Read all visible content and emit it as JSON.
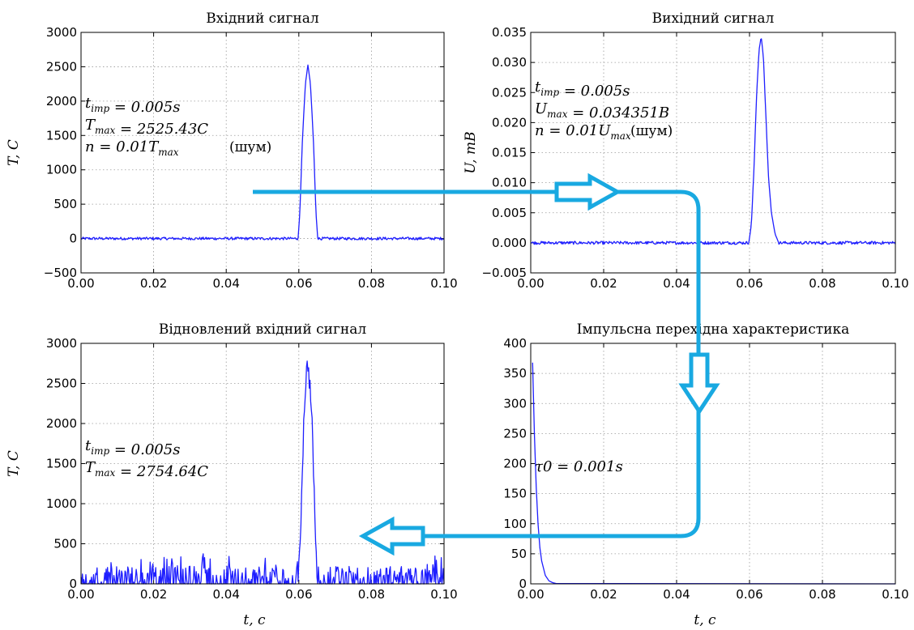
{
  "colors": {
    "series": "#1f1fff",
    "arrow": "#19a9e1",
    "grid": "#9a9a9a"
  },
  "chart_data": [
    {
      "type": "line",
      "title": "Вхідний сигнал",
      "xlabel": "",
      "ylabel": "T, C",
      "xlim": [
        0,
        0.1
      ],
      "ylim": [
        -500,
        3000
      ],
      "xticks": [
        "0.00",
        "0.02",
        "0.04",
        "0.06",
        "0.08",
        "0.10"
      ],
      "yticks": [
        "−500",
        "0",
        "500",
        "1000",
        "1500",
        "2000",
        "2500",
        "3000"
      ],
      "grid": true,
      "annotations": [
        "t_imp = 0.005s",
        "T_max = 2525.43C",
        "n = 0.01T_max",
        "(шум)"
      ],
      "series": [
        {
          "noise_amplitude": 40,
          "x": [
            0,
            0.0598,
            0.0603,
            0.061,
            0.0618,
            0.0625,
            0.0632,
            0.064,
            0.0647,
            0.0652
          ],
          "y": [
            0,
            0,
            400,
            1450,
            2250,
            2525,
            2250,
            1450,
            400,
            0
          ]
        }
      ]
    },
    {
      "type": "line",
      "title": "Вихідний сигнал",
      "xlabel": "",
      "ylabel": "U, mB",
      "xlim": [
        0,
        0.1
      ],
      "ylim": [
        -0.005,
        0.035
      ],
      "xticks": [
        "0.00",
        "0.02",
        "0.04",
        "0.06",
        "0.08",
        "0.10"
      ],
      "yticks": [
        "−0.005",
        "0.000",
        "0.005",
        "0.010",
        "0.015",
        "0.020",
        "0.025",
        "0.030",
        "0.035"
      ],
      "grid": true,
      "annotations": [
        "t_imp = 0.005s",
        "U_max = 0.034351B",
        "n = 0.01U_max",
        "(шум)"
      ],
      "series": [
        {
          "noise_amplitude": 0.0005,
          "x": [
            0,
            0.0598,
            0.0605,
            0.0612,
            0.0619,
            0.0626,
            0.0632,
            0.0638,
            0.0645,
            0.0652,
            0.066,
            0.067,
            0.068
          ],
          "y": [
            0,
            0,
            0.003,
            0.012,
            0.024,
            0.032,
            0.0343,
            0.031,
            0.021,
            0.011,
            0.005,
            0.0015,
            0
          ]
        }
      ]
    },
    {
      "type": "line",
      "title": "Відновлений вхідний сигнал",
      "xlabel": "t, c",
      "ylabel": "T, C",
      "xlim": [
        0,
        0.1
      ],
      "ylim": [
        0,
        3000
      ],
      "xticks": [
        "0.00",
        "0.02",
        "0.04",
        "0.06",
        "0.08",
        "0.10"
      ],
      "yticks": [
        "0",
        "500",
        "1000",
        "1500",
        "2000",
        "2500",
        "3000"
      ],
      "grid": true,
      "annotations": [
        "t_imp = 0.005s",
        "T_max = 2754.64C"
      ],
      "series": [
        {
          "noise_amplitude": 220,
          "x": [
            0,
            0.0598,
            0.0603,
            0.061,
            0.0615,
            0.062,
            0.0625,
            0.063,
            0.0635,
            0.064,
            0.0647,
            0.0652
          ],
          "y": [
            0,
            0,
            400,
            1500,
            2200,
            2600,
            2754,
            2500,
            2150,
            1500,
            400,
            0
          ]
        }
      ]
    },
    {
      "type": "line",
      "title": "Імпульсна перехідна характеристика",
      "xlabel": "t, c",
      "ylabel": "",
      "xlim": [
        0,
        0.1
      ],
      "ylim": [
        0,
        400
      ],
      "xticks": [
        "0.00",
        "0.02",
        "0.04",
        "0.06",
        "0.08",
        "0.10"
      ],
      "yticks": [
        "0",
        "50",
        "100",
        "150",
        "200",
        "250",
        "300",
        "350",
        "400"
      ],
      "grid": true,
      "annotations": [
        "τ0 = 0.001s"
      ],
      "series": [
        {
          "noise_amplitude": 0,
          "x": [
            0.0005,
            0.001,
            0.0015,
            0.002,
            0.0025,
            0.003,
            0.004,
            0.005,
            0.006,
            0.007,
            0.1
          ],
          "y": [
            368,
            250,
            160,
            100,
            60,
            38,
            14,
            5,
            2,
            0.5,
            0
          ]
        }
      ]
    }
  ]
}
